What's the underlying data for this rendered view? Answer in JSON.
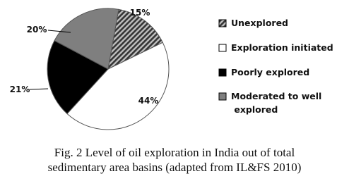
{
  "chart_data": {
    "type": "pie",
    "caption": [
      "Fig. 2 Level of oil exploration in India out of total",
      "sedimentary area basins (adapted from IL&FS 2010)"
    ],
    "categories": [
      "Unexplored",
      "Exploration initiated",
      "Poorly explored",
      "Moderated to well explored"
    ],
    "values": [
      15,
      44,
      21,
      20
    ],
    "value_labels": [
      "15%",
      "44%",
      "21%",
      "20%"
    ],
    "colors": [
      "#3a3a3a",
      "#ffffff",
      "#000000",
      "#7f7f7f"
    ]
  }
}
